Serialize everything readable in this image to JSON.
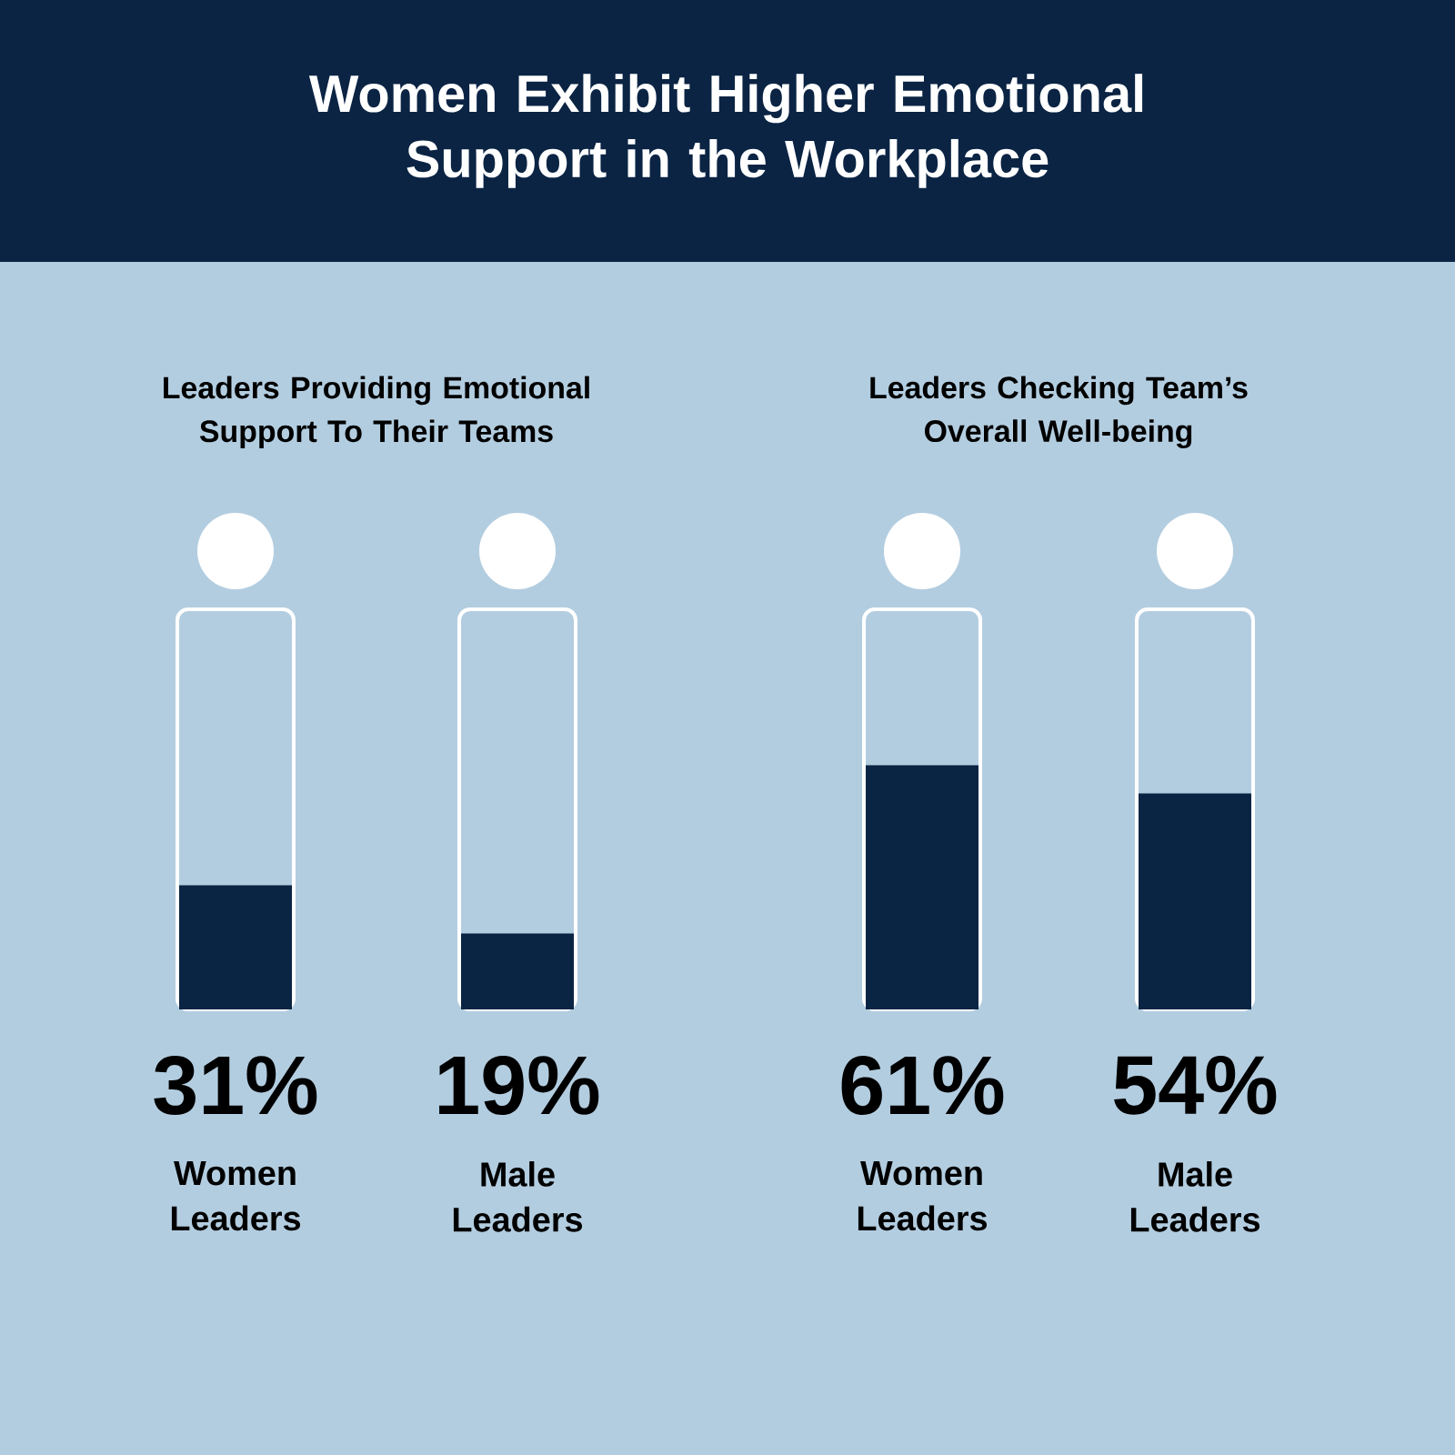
{
  "chart_data": [
    {
      "type": "bar",
      "title": "Women Exhibit Higher Emotional Support in the Workplace",
      "subtitle": "Leaders Providing Emotional Support To Their Teams",
      "categories": [
        "Women Leaders",
        "Male Leaders"
      ],
      "values": [
        31,
        19
      ],
      "value_labels": [
        "31%",
        "19%"
      ],
      "color": "#0a2444",
      "ylim": [
        0,
        100
      ]
    },
    {
      "type": "bar",
      "subtitle": "Leaders Checking Team’s Overall Well-being",
      "categories": [
        "Women Leaders",
        "Male Leaders"
      ],
      "values": [
        61,
        54
      ],
      "value_labels": [
        "61%",
        "54%"
      ],
      "color": "#0a2444",
      "ylim": [
        0,
        100
      ]
    }
  ]
}
